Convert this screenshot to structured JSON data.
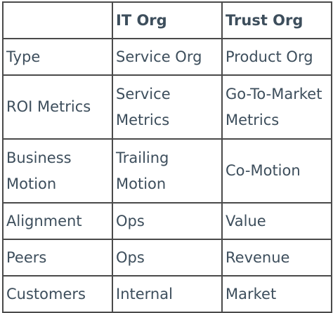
{
  "table": {
    "headers": [
      "",
      "IT Org",
      "Trust Org"
    ],
    "rows": [
      {
        "label": [
          "Type"
        ],
        "it": [
          "Service Org"
        ],
        "trust": [
          "Product Org"
        ]
      },
      {
        "label": [
          "ROI Metrics"
        ],
        "it": [
          "Service",
          "Metrics"
        ],
        "trust": [
          "Go-To-Market",
          "Metrics"
        ]
      },
      {
        "label": [
          "Business",
          "Motion"
        ],
        "it": [
          "Trailing",
          "Motion"
        ],
        "trust": [
          "Co-Motion"
        ]
      },
      {
        "label": [
          "Alignment"
        ],
        "it": [
          "Ops"
        ],
        "trust": [
          "Value"
        ]
      },
      {
        "label": [
          "Peers"
        ],
        "it": [
          "Ops"
        ],
        "trust": [
          "Revenue"
        ]
      },
      {
        "label": [
          "Customers"
        ],
        "it": [
          "Internal"
        ],
        "trust": [
          "Market"
        ]
      }
    ]
  }
}
